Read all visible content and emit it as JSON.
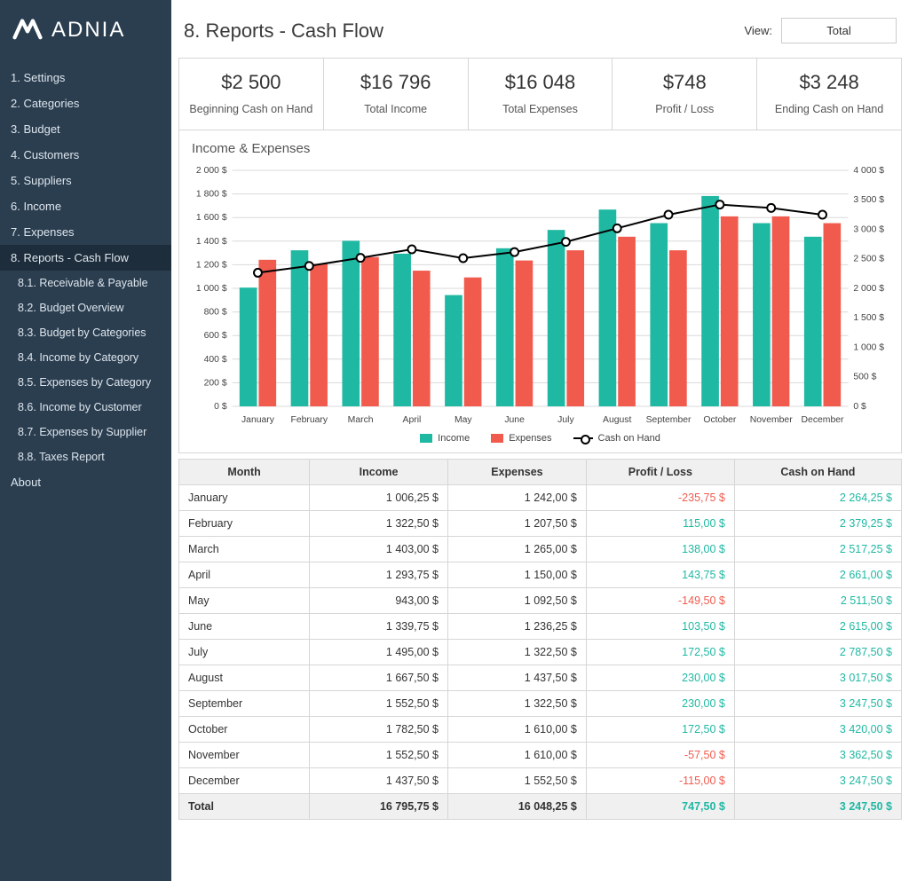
{
  "brand": {
    "name": "ADNIA"
  },
  "sidebar": {
    "items": [
      {
        "label": "1. Settings"
      },
      {
        "label": "2. Categories"
      },
      {
        "label": "3. Budget"
      },
      {
        "label": "4. Customers"
      },
      {
        "label": "5. Suppliers"
      },
      {
        "label": "6. Income"
      },
      {
        "label": "7. Expenses"
      },
      {
        "label": "8. Reports - Cash Flow",
        "active": true
      },
      {
        "label": "8.1. Receivable & Payable",
        "sub": true
      },
      {
        "label": "8.2. Budget Overview",
        "sub": true
      },
      {
        "label": "8.3. Budget by Categories",
        "sub": true
      },
      {
        "label": "8.4. Income by Category",
        "sub": true
      },
      {
        "label": "8.5. Expenses by Category",
        "sub": true
      },
      {
        "label": "8.6. Income by Customer",
        "sub": true
      },
      {
        "label": "8.7. Expenses by Supplier",
        "sub": true
      },
      {
        "label": "8.8. Taxes Report",
        "sub": true
      },
      {
        "label": "About"
      }
    ]
  },
  "header": {
    "title": "8. Reports - Cash Flow",
    "view_label": "View:",
    "view_value": "Total"
  },
  "kpis": [
    {
      "value": "$2 500",
      "label": "Beginning Cash on Hand"
    },
    {
      "value": "$16 796",
      "label": "Total Income"
    },
    {
      "value": "$16 048",
      "label": "Total Expenses"
    },
    {
      "value": "$748",
      "label": "Profit / Loss"
    },
    {
      "value": "$3 248",
      "label": "Ending Cash on Hand"
    }
  ],
  "chart": {
    "title": "Income & Expenses",
    "type": "bar+line",
    "categories": [
      "January",
      "February",
      "March",
      "April",
      "May",
      "June",
      "July",
      "August",
      "September",
      "October",
      "November",
      "December"
    ],
    "income_values": [
      1006.25,
      1322.5,
      1403.0,
      1293.75,
      943.0,
      1339.75,
      1495.0,
      1667.5,
      1552.5,
      1782.5,
      1552.5,
      1437.5
    ],
    "expense_values": [
      1242.0,
      1207.5,
      1265.0,
      1150.0,
      1092.5,
      1236.25,
      1322.5,
      1437.5,
      1322.5,
      1610.0,
      1610.0,
      1552.5
    ],
    "cash_on_hand": [
      2264.25,
      2379.25,
      2517.25,
      2661.0,
      2511.5,
      2615.0,
      2787.5,
      3017.5,
      3247.5,
      3420.0,
      3362.5,
      3247.5
    ],
    "colors": {
      "income": "#1fb8a3",
      "expenses": "#f15b4e",
      "line": "#000000",
      "marker_fill": "#ffffff",
      "grid": "#d9d9d9",
      "axis_text": "#444444",
      "background": "#ffffff"
    },
    "left_axis": {
      "min": 0,
      "max": 2000,
      "step": 200,
      "suffix": " $"
    },
    "right_axis": {
      "min": 0,
      "max": 4000,
      "step": 500,
      "suffix": " $"
    },
    "bar_width_ratio": 0.34,
    "legend": {
      "income": "Income",
      "expenses": "Expenses",
      "cash": "Cash on Hand"
    }
  },
  "table": {
    "columns": [
      "Month",
      "Income",
      "Expenses",
      "Profit / Loss",
      "Cash on Hand"
    ],
    "rows": [
      {
        "month": "January",
        "income": "1 006,25 $",
        "expenses": "1 242,00 $",
        "profit": "-235,75 $",
        "profit_sign": -1,
        "cash": "2 264,25 $"
      },
      {
        "month": "February",
        "income": "1 322,50 $",
        "expenses": "1 207,50 $",
        "profit": "115,00 $",
        "profit_sign": 1,
        "cash": "2 379,25 $"
      },
      {
        "month": "March",
        "income": "1 403,00 $",
        "expenses": "1 265,00 $",
        "profit": "138,00 $",
        "profit_sign": 1,
        "cash": "2 517,25 $"
      },
      {
        "month": "April",
        "income": "1 293,75 $",
        "expenses": "1 150,00 $",
        "profit": "143,75 $",
        "profit_sign": 1,
        "cash": "2 661,00 $"
      },
      {
        "month": "May",
        "income": "943,00 $",
        "expenses": "1 092,50 $",
        "profit": "-149,50 $",
        "profit_sign": -1,
        "cash": "2 511,50 $"
      },
      {
        "month": "June",
        "income": "1 339,75 $",
        "expenses": "1 236,25 $",
        "profit": "103,50 $",
        "profit_sign": 1,
        "cash": "2 615,00 $"
      },
      {
        "month": "July",
        "income": "1 495,00 $",
        "expenses": "1 322,50 $",
        "profit": "172,50 $",
        "profit_sign": 1,
        "cash": "2 787,50 $"
      },
      {
        "month": "August",
        "income": "1 667,50 $",
        "expenses": "1 437,50 $",
        "profit": "230,00 $",
        "profit_sign": 1,
        "cash": "3 017,50 $"
      },
      {
        "month": "September",
        "income": "1 552,50 $",
        "expenses": "1 322,50 $",
        "profit": "230,00 $",
        "profit_sign": 1,
        "cash": "3 247,50 $"
      },
      {
        "month": "October",
        "income": "1 782,50 $",
        "expenses": "1 610,00 $",
        "profit": "172,50 $",
        "profit_sign": 1,
        "cash": "3 420,00 $"
      },
      {
        "month": "November",
        "income": "1 552,50 $",
        "expenses": "1 610,00 $",
        "profit": "-57,50 $",
        "profit_sign": -1,
        "cash": "3 362,50 $"
      },
      {
        "month": "December",
        "income": "1 437,50 $",
        "expenses": "1 552,50 $",
        "profit": "-115,00 $",
        "profit_sign": -1,
        "cash": "3 247,50 $"
      }
    ],
    "total": {
      "month": "Total",
      "income": "16 795,75 $",
      "expenses": "16 048,25 $",
      "profit": "747,50 $",
      "profit_sign": 1,
      "cash": "3 247,50 $"
    }
  }
}
